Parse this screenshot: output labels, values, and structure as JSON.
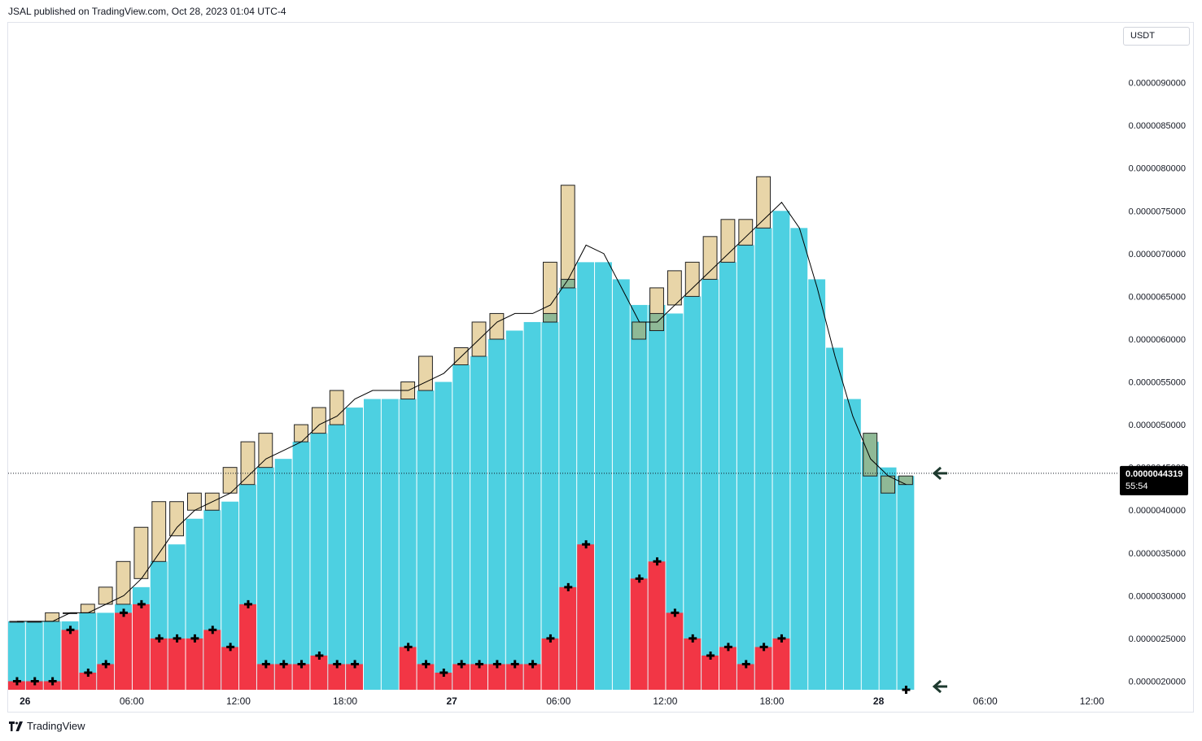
{
  "header": {
    "text": "JSAL published on TradingView.com, Oct 28, 2023 01:04 UTC-4"
  },
  "currency": "USDT",
  "footer": {
    "brand": "TradingView"
  },
  "colors": {
    "cyan": "#4dd0e1",
    "red": "#f23645",
    "candle": "#e8d5a8",
    "candle_green": "#8fb996",
    "line": "#000000",
    "price_label_bg": "#000000"
  },
  "price_label": {
    "price": "0.0000044319",
    "countdown": "55:54"
  },
  "chart_data": {
    "type": "bar",
    "y_ticks": [
      "0.0000020000",
      "0.0000025000",
      "0.0000030000",
      "0.0000035000",
      "0.0000040000",
      "0.0000045000",
      "0.0000050000",
      "0.0000055000",
      "0.0000060000",
      "0.0000065000",
      "0.0000070000",
      "0.0000075000",
      "0.0000080000",
      "0.0000085000",
      "0.0000090000"
    ],
    "ylim": [
      1.9e-06,
      9.7e-06
    ],
    "x_ticks": [
      {
        "label": "26",
        "bar": 1,
        "bold": true
      },
      {
        "label": "06:00",
        "bar": 7,
        "bold": false
      },
      {
        "label": "12:00",
        "bar": 13,
        "bold": false
      },
      {
        "label": "18:00",
        "bar": 19,
        "bold": false
      },
      {
        "label": "27",
        "bar": 25,
        "bold": true
      },
      {
        "label": "06:00",
        "bar": 31,
        "bold": false
      },
      {
        "label": "12:00",
        "bar": 37,
        "bold": false
      },
      {
        "label": "18:00",
        "bar": 43,
        "bold": false
      },
      {
        "label": "28",
        "bar": 49,
        "bold": true
      },
      {
        "label": "06:00",
        "bar": 55,
        "bold": false
      },
      {
        "label": "12:00",
        "bar": 61,
        "bold": false
      }
    ],
    "cyan_values": [
      2.7e-06,
      2.7e-06,
      2.7e-06,
      2.7e-06,
      2.8e-06,
      2.8e-06,
      2.9e-06,
      3.1e-06,
      3.4e-06,
      3.6e-06,
      3.9e-06,
      4e-06,
      4.1e-06,
      4.3e-06,
      4.5e-06,
      4.6e-06,
      4.8e-06,
      4.9e-06,
      5e-06,
      5.2e-06,
      5.3e-06,
      5.3e-06,
      5.3e-06,
      5.4e-06,
      5.5e-06,
      5.7e-06,
      5.8e-06,
      6e-06,
      6.1e-06,
      6.2e-06,
      6.2e-06,
      6.6e-06,
      6.9e-06,
      6.9e-06,
      6.7e-06,
      6.4e-06,
      6.4e-06,
      6.3e-06,
      6.5e-06,
      6.7e-06,
      6.9e-06,
      7.1e-06,
      7.3e-06,
      7.5e-06,
      7.3e-06,
      6.7e-06,
      5.9e-06,
      5.3e-06,
      4.8e-06,
      4.5e-06,
      4.4e-06
    ],
    "red_values": [
      2e-06,
      2e-06,
      2e-06,
      2.6e-06,
      2.1e-06,
      2.2e-06,
      2.8e-06,
      2.9e-06,
      2.5e-06,
      2.5e-06,
      2.5e-06,
      2.6e-06,
      2.4e-06,
      2.9e-06,
      2.2e-06,
      2.2e-06,
      2.2e-06,
      2.3e-06,
      2.2e-06,
      2.2e-06,
      null,
      null,
      2.4e-06,
      2.2e-06,
      2.1e-06,
      2.2e-06,
      2.2e-06,
      2.2e-06,
      2.2e-06,
      2.2e-06,
      2.5e-06,
      3.1e-06,
      3.6e-06,
      null,
      null,
      3.2e-06,
      3.4e-06,
      2.8e-06,
      2.5e-06,
      2.3e-06,
      2.4e-06,
      2.2e-06,
      2.4e-06,
      2.5e-06,
      null,
      null,
      null,
      null,
      null,
      null,
      1.9e-06
    ],
    "candles": [
      {
        "bar": 0,
        "open": 2.7e-06,
        "close": 2.7e-06
      },
      {
        "bar": 1,
        "open": 2.7e-06,
        "close": 2.7e-06
      },
      {
        "bar": 2,
        "open": 2.7e-06,
        "close": 2.8e-06
      },
      {
        "bar": 3,
        "open": 2.8e-06,
        "close": 2.8e-06
      },
      {
        "bar": 4,
        "open": 2.8e-06,
        "close": 2.9e-06
      },
      {
        "bar": 5,
        "open": 2.9e-06,
        "close": 3.1e-06
      },
      {
        "bar": 6,
        "open": 2.9e-06,
        "close": 3.4e-06
      },
      {
        "bar": 7,
        "open": 3.2e-06,
        "close": 3.8e-06
      },
      {
        "bar": 8,
        "open": 3.4e-06,
        "close": 4.1e-06
      },
      {
        "bar": 9,
        "open": 3.7e-06,
        "close": 4.1e-06
      },
      {
        "bar": 10,
        "open": 4e-06,
        "close": 4.2e-06
      },
      {
        "bar": 11,
        "open": 4e-06,
        "close": 4.2e-06
      },
      {
        "bar": 12,
        "open": 4.2e-06,
        "close": 4.5e-06
      },
      {
        "bar": 13,
        "open": 4.3e-06,
        "close": 4.8e-06
      },
      {
        "bar": 14,
        "open": 4.5e-06,
        "close": 4.9e-06
      },
      {
        "bar": 16,
        "open": 4.8e-06,
        "close": 5e-06
      },
      {
        "bar": 17,
        "open": 4.9e-06,
        "close": 5.2e-06
      },
      {
        "bar": 18,
        "open": 5e-06,
        "close": 5.4e-06
      },
      {
        "bar": 22,
        "open": 5.3e-06,
        "close": 5.5e-06
      },
      {
        "bar": 23,
        "open": 5.4e-06,
        "close": 5.8e-06
      },
      {
        "bar": 25,
        "open": 5.7e-06,
        "close": 5.9e-06
      },
      {
        "bar": 26,
        "open": 5.8e-06,
        "close": 6.2e-06
      },
      {
        "bar": 27,
        "open": 6e-06,
        "close": 6.3e-06
      },
      {
        "bar": 30,
        "open": 6.2e-06,
        "close": 6.9e-06,
        "green_top": 6.3e-06
      },
      {
        "bar": 31,
        "open": 6.6e-06,
        "close": 7.8e-06,
        "green_top": 6.7e-06
      },
      {
        "bar": 35,
        "open": 6e-06,
        "close": 6.2e-06,
        "green": true
      },
      {
        "bar": 36,
        "open": 6.1e-06,
        "close": 6.6e-06,
        "green_top": 6.3e-06
      },
      {
        "bar": 37,
        "open": 6.4e-06,
        "close": 6.8e-06
      },
      {
        "bar": 38,
        "open": 6.5e-06,
        "close": 6.9e-06
      },
      {
        "bar": 39,
        "open": 6.7e-06,
        "close": 7.2e-06
      },
      {
        "bar": 40,
        "open": 6.9e-06,
        "close": 7.4e-06
      },
      {
        "bar": 41,
        "open": 7.1e-06,
        "close": 7.4e-06
      },
      {
        "bar": 42,
        "open": 7.3e-06,
        "close": 7.9e-06
      },
      {
        "bar": 48,
        "open": 4.4e-06,
        "close": 4.9e-06,
        "green": true
      },
      {
        "bar": 49,
        "open": 4.2e-06,
        "close": 4.4e-06,
        "green": true
      },
      {
        "bar": 50,
        "open": 4.3e-06,
        "close": 4.4e-06,
        "green": true
      }
    ],
    "line_values": [
      2.7e-06,
      2.7e-06,
      2.7e-06,
      2.8e-06,
      2.8e-06,
      2.9e-06,
      3e-06,
      3.2e-06,
      3.5e-06,
      3.8e-06,
      4e-06,
      4.1e-06,
      4.2e-06,
      4.4e-06,
      4.6e-06,
      4.7e-06,
      4.8e-06,
      5e-06,
      5.1e-06,
      5.3e-06,
      5.4e-06,
      5.4e-06,
      5.4e-06,
      5.5e-06,
      5.6e-06,
      5.8e-06,
      6e-06,
      6.2e-06,
      6.3e-06,
      6.3e-06,
      6.4e-06,
      6.7e-06,
      7.1e-06,
      7e-06,
      6.6e-06,
      6.2e-06,
      6.2e-06,
      6.4e-06,
      6.6e-06,
      6.8e-06,
      7e-06,
      7.2e-06,
      7.4e-06,
      7.6e-06,
      7.3e-06,
      6.6e-06,
      5.8e-06,
      5.1e-06,
      4.6e-06,
      4.4e-06,
      4.3e-06
    ],
    "current_price": 4.4319e-06
  }
}
